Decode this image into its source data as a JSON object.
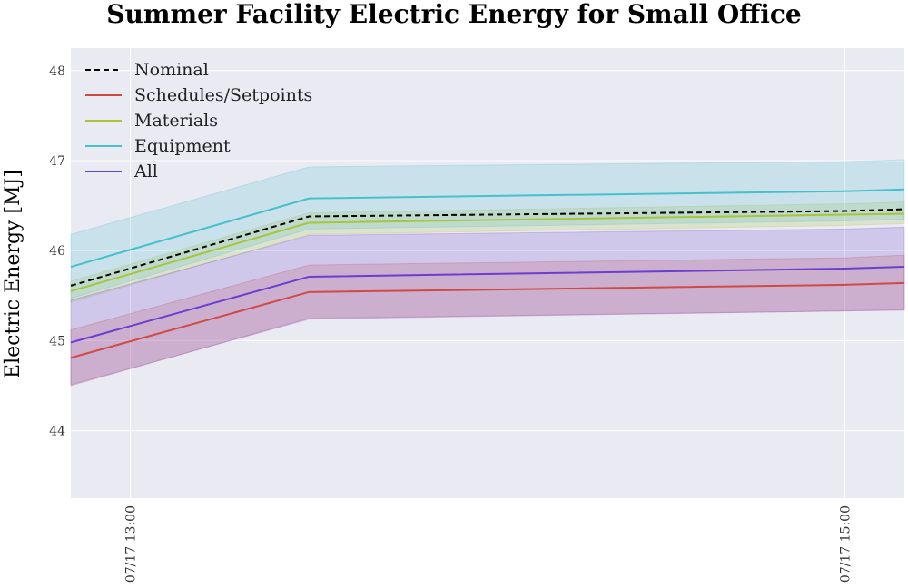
{
  "chart_data": {
    "type": "line",
    "title": "Summer Facility Electric Energy for Small Office",
    "xlabel": "",
    "ylabel": "Electric Energy [MJ]",
    "x": [
      "07/17 12:50",
      "07/17 13:30",
      "07/17 15:00",
      "07/17 15:10"
    ],
    "xlim": [
      "07/17 12:50",
      "07/17 15:10"
    ],
    "ylim": [
      43.25,
      48.25
    ],
    "yticks": [
      44,
      45,
      46,
      47,
      48
    ],
    "xticks": [
      {
        "value": "07/17 13:00",
        "label": "07/17  13:00"
      },
      {
        "value": "07/17 15:00",
        "label": "07/17  15:00"
      }
    ],
    "grid": true,
    "legend_position": "top-left",
    "series": [
      {
        "name": "Nominal",
        "color": "#000000",
        "style": "dashed",
        "values": [
          45.61,
          46.38,
          46.44,
          46.46
        ]
      },
      {
        "name": "Schedules/Setpoints",
        "color": "#d04a44",
        "style": "solid",
        "values": [
          44.81,
          45.54,
          45.62,
          45.64
        ],
        "band_low": [
          44.5,
          45.25,
          45.33,
          45.34
        ],
        "band_high": [
          45.12,
          45.84,
          45.92,
          45.95
        ]
      },
      {
        "name": "Materials",
        "color": "#a8c43c",
        "style": "solid",
        "values": [
          45.55,
          46.31,
          46.4,
          46.41
        ],
        "band_low": [
          45.43,
          46.18,
          46.28,
          46.3
        ],
        "band_high": [
          45.66,
          46.42,
          46.52,
          46.54
        ]
      },
      {
        "name": "Equipment",
        "color": "#46c0cc",
        "style": "solid",
        "values": [
          45.82,
          46.58,
          46.66,
          46.68
        ],
        "band_low": [
          45.47,
          46.24,
          46.33,
          46.35
        ],
        "band_high": [
          46.18,
          46.93,
          46.99,
          47.01
        ]
      },
      {
        "name": "All",
        "color": "#6a3fcf",
        "style": "solid",
        "values": [
          44.98,
          45.71,
          45.8,
          45.82
        ],
        "band_low": [
          44.51,
          45.24,
          45.33,
          45.34
        ],
        "band_high": [
          45.45,
          46.17,
          46.24,
          46.26
        ]
      }
    ]
  }
}
